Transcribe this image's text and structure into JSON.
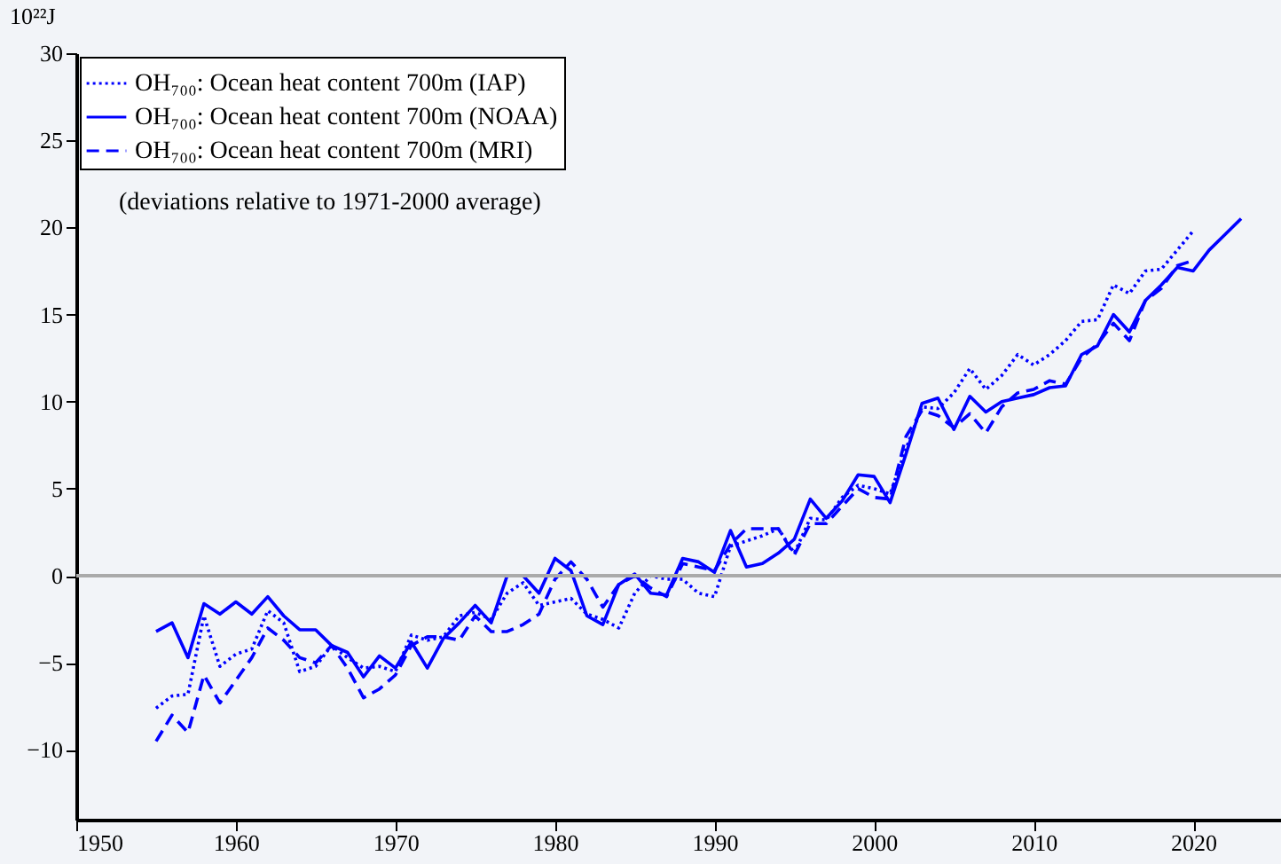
{
  "chart_data": {
    "type": "line",
    "ylabel": "10²²J",
    "annotations": [
      "(deviations relative to 1971-2000 average)"
    ],
    "xlim": [
      1950,
      2025.5
    ],
    "xticks": [
      1950,
      1960,
      1970,
      1980,
      1990,
      2000,
      2010,
      2020
    ],
    "ylim": [
      -14,
      30
    ],
    "yticks": [
      -10,
      -5,
      0,
      5,
      10,
      15,
      20,
      25,
      30
    ],
    "grid": false,
    "legend": "top left",
    "marker": "none",
    "ref_lines": [
      {
        "axis": "y",
        "value": 0,
        "color": "#aaaaaa"
      }
    ],
    "series": [
      {
        "name": "OH₇₀₀: Ocean heat content 700m (IAP)",
        "color": "#0000ff",
        "line_style": "dotted",
        "x": [
          1955,
          1956,
          1957,
          1958,
          1959,
          1960,
          1961,
          1962,
          1963,
          1964,
          1965,
          1966,
          1967,
          1968,
          1969,
          1970,
          1971,
          1972,
          1973,
          1974,
          1975,
          1976,
          1977,
          1978,
          1979,
          1980,
          1981,
          1982,
          1983,
          1984,
          1985,
          1986,
          1987,
          1988,
          1989,
          1990,
          1991,
          1992,
          1993,
          1994,
          1995,
          1996,
          1997,
          1998,
          1999,
          2000,
          2001,
          2002,
          2003,
          2004,
          2005,
          2006,
          2007,
          2008,
          2009,
          2010,
          2011,
          2012,
          2013,
          2014,
          2015,
          2016,
          2017,
          2018,
          2019,
          2020
        ],
        "values": [
          -7.6,
          -6.9,
          -6.8,
          -2.3,
          -5.2,
          -4.5,
          -4.2,
          -2.0,
          -2.7,
          -5.5,
          -5.2,
          -4.0,
          -4.7,
          -5.3,
          -5.2,
          -5.5,
          -3.4,
          -3.7,
          -3.5,
          -2.3,
          -2.1,
          -2.5,
          -1.0,
          -0.4,
          -1.7,
          -1.5,
          -1.3,
          -2.2,
          -2.5,
          -3.0,
          -1.0,
          0.0,
          -0.2,
          -0.2,
          -1.0,
          -1.2,
          1.7,
          2.0,
          2.3,
          2.7,
          1.3,
          3.3,
          3.2,
          4.5,
          5.2,
          5.0,
          4.7,
          7.3,
          9.7,
          9.6,
          10.5,
          11.9,
          10.7,
          11.5,
          12.7,
          12.1,
          12.7,
          13.5,
          14.6,
          14.7,
          16.7,
          16.2,
          17.5,
          17.6,
          18.7,
          19.8
        ]
      },
      {
        "name": "OH₇₀₀: Ocean heat content 700m (NOAA)",
        "color": "#0000ff",
        "line_style": "solid",
        "x": [
          1955,
          1956,
          1957,
          1958,
          1959,
          1960,
          1961,
          1962,
          1963,
          1964,
          1965,
          1966,
          1967,
          1968,
          1969,
          1970,
          1971,
          1972,
          1973,
          1974,
          1975,
          1976,
          1977,
          1978,
          1979,
          1980,
          1981,
          1982,
          1983,
          1984,
          1985,
          1986,
          1987,
          1988,
          1989,
          1990,
          1991,
          1992,
          1993,
          1994,
          1995,
          1996,
          1997,
          1998,
          1999,
          2000,
          2001,
          2002,
          2003,
          2004,
          2005,
          2006,
          2007,
          2008,
          2009,
          2010,
          2011,
          2012,
          2013,
          2014,
          2015,
          2016,
          2017,
          2018,
          2019,
          2020,
          2021,
          2022,
          2023
        ],
        "values": [
          -3.2,
          -2.7,
          -4.7,
          -1.6,
          -2.2,
          -1.5,
          -2.2,
          -1.2,
          -2.3,
          -3.1,
          -3.1,
          -4.0,
          -4.4,
          -5.8,
          -4.6,
          -5.3,
          -3.8,
          -5.3,
          -3.6,
          -2.7,
          -1.7,
          -2.7,
          0.0,
          0.0,
          -1.0,
          1.0,
          0.3,
          -2.3,
          -2.8,
          -0.5,
          0.1,
          -1.0,
          -1.1,
          1.0,
          0.8,
          0.2,
          2.6,
          0.5,
          0.7,
          1.3,
          2.1,
          4.4,
          3.3,
          4.3,
          5.8,
          5.7,
          4.2,
          7.0,
          9.9,
          10.2,
          8.4,
          10.3,
          9.4,
          10.0,
          10.2,
          10.4,
          10.8,
          10.9,
          12.7,
          13.2,
          15.0,
          14.0,
          15.8,
          16.7,
          17.7,
          17.5,
          18.7,
          19.6,
          20.5
        ]
      },
      {
        "name": "OH₇₀₀: Ocean heat content 700m (MRI)",
        "color": "#0000ff",
        "line_style": "dashed",
        "x": [
          1955,
          1956,
          1957,
          1958,
          1959,
          1960,
          1961,
          1962,
          1963,
          1964,
          1965,
          1966,
          1967,
          1968,
          1969,
          1970,
          1971,
          1972,
          1973,
          1974,
          1975,
          1976,
          1977,
          1978,
          1979,
          1980,
          1981,
          1982,
          1983,
          1984,
          1985,
          1986,
          1987,
          1988,
          1989,
          1990,
          1991,
          1992,
          1993,
          1994,
          1995,
          1996,
          1997,
          1998,
          1999,
          2000,
          2001,
          2002,
          2003,
          2004,
          2005,
          2006,
          2007,
          2008,
          2009,
          2010,
          2011,
          2012,
          2013,
          2014,
          2015,
          2016,
          2017,
          2018,
          2019,
          2020
        ],
        "values": [
          -9.5,
          -8.0,
          -9.0,
          -5.7,
          -7.3,
          -6.0,
          -4.7,
          -3.0,
          -3.7,
          -4.7,
          -5.0,
          -4.0,
          -5.3,
          -7.0,
          -6.5,
          -5.7,
          -4.0,
          -3.5,
          -3.5,
          -3.7,
          -2.3,
          -3.2,
          -3.2,
          -2.8,
          -2.2,
          -0.2,
          0.8,
          -0.2,
          -1.8,
          -0.5,
          0.0,
          -0.7,
          -1.2,
          0.7,
          0.5,
          0.3,
          1.8,
          2.7,
          2.7,
          2.7,
          1.2,
          3.0,
          3.0,
          4.0,
          5.0,
          4.5,
          4.4,
          8.0,
          9.5,
          9.2,
          8.5,
          9.3,
          8.2,
          9.7,
          10.5,
          10.7,
          11.2,
          11.0,
          12.5,
          13.3,
          14.5,
          13.5,
          15.8,
          16.5,
          17.8,
          18.1
        ]
      }
    ]
  }
}
